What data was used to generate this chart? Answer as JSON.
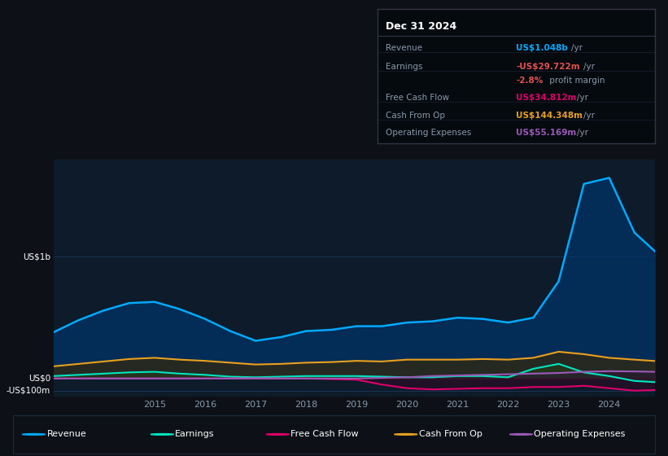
{
  "bg_color": "#0d1117",
  "plot_bg_color": "#0d1b2a",
  "years": [
    2013,
    2013.5,
    2014,
    2014.5,
    2015,
    2015.5,
    2016,
    2016.5,
    2017,
    2017.5,
    2018,
    2018.5,
    2019,
    2019.5,
    2020,
    2020.5,
    2021,
    2021.5,
    2022,
    2022.5,
    2023,
    2023.5,
    2024,
    2024.5,
    2024.9
  ],
  "revenue": [
    380,
    480,
    560,
    620,
    630,
    570,
    490,
    390,
    310,
    340,
    390,
    400,
    430,
    430,
    460,
    470,
    500,
    490,
    460,
    500,
    800,
    1600,
    1650,
    1200,
    1048
  ],
  "earnings": [
    20,
    30,
    40,
    50,
    55,
    40,
    30,
    15,
    10,
    15,
    20,
    20,
    20,
    15,
    10,
    10,
    20,
    20,
    10,
    80,
    120,
    50,
    20,
    -20,
    -30
  ],
  "free_cash_flow": [
    0,
    0,
    0,
    0,
    0,
    0,
    0,
    0,
    0,
    0,
    0,
    -5,
    -10,
    -50,
    -80,
    -90,
    -85,
    -80,
    -80,
    -70,
    -70,
    -60,
    -80,
    -100,
    -95
  ],
  "cash_from_op": [
    100,
    120,
    140,
    160,
    170,
    155,
    145,
    130,
    115,
    120,
    130,
    135,
    145,
    140,
    155,
    155,
    155,
    160,
    155,
    170,
    220,
    200,
    170,
    155,
    144
  ],
  "operating_expenses": [
    0,
    0,
    0,
    0,
    0,
    0,
    0,
    0,
    0,
    0,
    0,
    0,
    0,
    5,
    10,
    20,
    25,
    30,
    35,
    40,
    45,
    55,
    60,
    58,
    55
  ],
  "revenue_color": "#00aaff",
  "earnings_color": "#00e5c0",
  "free_cash_flow_color": "#e0006a",
  "cash_from_op_color": "#e8a020",
  "operating_expenses_color": "#9b59b6",
  "revenue_fill_color": "#003366",
  "earnings_fill_color": "#005544",
  "ylim_min": -150,
  "ylim_max": 1800,
  "xtick_years": [
    2015,
    2016,
    2017,
    2018,
    2019,
    2020,
    2021,
    2022,
    2023,
    2024
  ],
  "grid_color": "#1e3a5f",
  "text_color": "#8899aa",
  "tooltip_bg": "#050a0f",
  "tooltip_border": "#333344",
  "tooltip_title": "Dec 31 2024",
  "legend_items": [
    {
      "label": "Revenue",
      "color": "#00aaff"
    },
    {
      "label": "Earnings",
      "color": "#00e5c0"
    },
    {
      "label": "Free Cash Flow",
      "color": "#e0006a"
    },
    {
      "label": "Cash From Op",
      "color": "#e8a020"
    },
    {
      "label": "Operating Expenses",
      "color": "#9b59b6"
    }
  ]
}
